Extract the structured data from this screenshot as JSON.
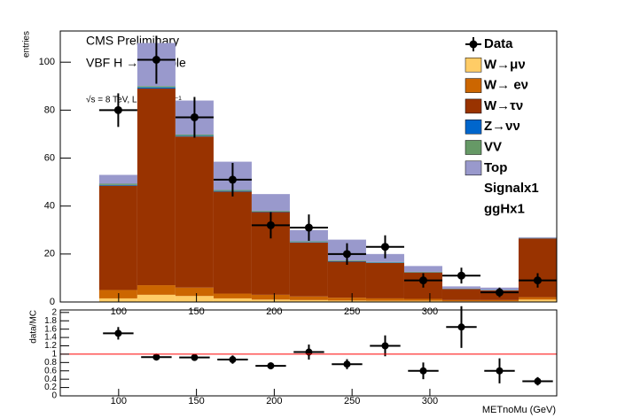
{
  "chart_data": {
    "type": "stacked-histogram",
    "annotations": [
      "CMS Preliminary",
      "VBF H → invisible",
      "√s = 8 TeV, L = 19.2 fb⁻¹"
    ],
    "ylabel": "entries",
    "xlabel": "METnoMu (GeV)",
    "bins": [
      87.5,
      112,
      136.5,
      161,
      185.5,
      210,
      234.5,
      259,
      283.5,
      308,
      332.5,
      357,
      381.5
    ],
    "xlim": [
      62.5,
      381.5
    ],
    "xticks": [
      100,
      150,
      200,
      250,
      300
    ],
    "ylim": [
      0,
      113
    ],
    "yticks": [
      0,
      20,
      40,
      60,
      80,
      100
    ],
    "series": [
      {
        "name": "W→μν",
        "color": "#ffcc66",
        "values": [
          1.5,
          3,
          2.5,
          1.5,
          1,
          0.8,
          0.6,
          0.5,
          0.5,
          0.3,
          0.3,
          1
        ]
      },
      {
        "name": "W→ eν",
        "color": "#cc6600",
        "values": [
          3.5,
          4,
          3.5,
          2,
          2,
          1.5,
          1.2,
          1,
          0.8,
          0.5,
          0.5,
          1
        ]
      },
      {
        "name": "W→τν",
        "color": "#993300",
        "values": [
          43.5,
          82,
          63,
          42.5,
          34.5,
          22.5,
          15,
          14.8,
          11,
          4.6,
          4,
          24.5
        ]
      },
      {
        "name": "Z→νν",
        "color": "#0066cc",
        "values": [
          0.3,
          0.5,
          0.3,
          0.3,
          0.2,
          0.2,
          0.2,
          0.2,
          0.1,
          0.1,
          0.1,
          0.1
        ]
      },
      {
        "name": "VV",
        "color": "#669966",
        "values": [
          0.5,
          0.5,
          0.5,
          0.4,
          0.3,
          0.3,
          0.3,
          0.2,
          0.2,
          0.1,
          0.1,
          0.1
        ]
      },
      {
        "name": "Top",
        "color": "#9999cc",
        "values": [
          3.7,
          18,
          14.2,
          11.8,
          7,
          4.7,
          8.7,
          3.3,
          2.4,
          0.9,
          1,
          0.3
        ]
      }
    ],
    "data": {
      "name": "Data",
      "color": "#000000",
      "values": [
        80,
        101,
        77,
        51,
        32,
        31,
        20,
        23,
        9,
        11,
        4,
        9
      ],
      "errors": [
        7,
        10,
        8.5,
        7,
        5.5,
        5.5,
        4.5,
        4.8,
        3,
        3.3,
        2,
        3
      ]
    },
    "extra_legend": [
      "Signalx1",
      "ggHx1"
    ],
    "ratio": {
      "ylabel": "data/MC",
      "values": [
        1.5,
        0.93,
        0.92,
        0.87,
        0.72,
        1.05,
        0.76,
        1.2,
        0.6,
        1.65,
        0.6,
        0.35
      ],
      "errors": [
        0.15,
        0.07,
        0.08,
        0.1,
        0.08,
        0.18,
        0.12,
        0.25,
        0.2,
        0.5,
        0.3,
        0.1
      ],
      "ylim": [
        0,
        2.06
      ],
      "yticks": [
        0,
        0.2,
        0.4,
        0.6,
        0.8,
        1,
        1.2,
        1.4,
        1.6,
        1.8,
        2
      ],
      "reference": 1,
      "reference_color": "#ff0000"
    }
  }
}
